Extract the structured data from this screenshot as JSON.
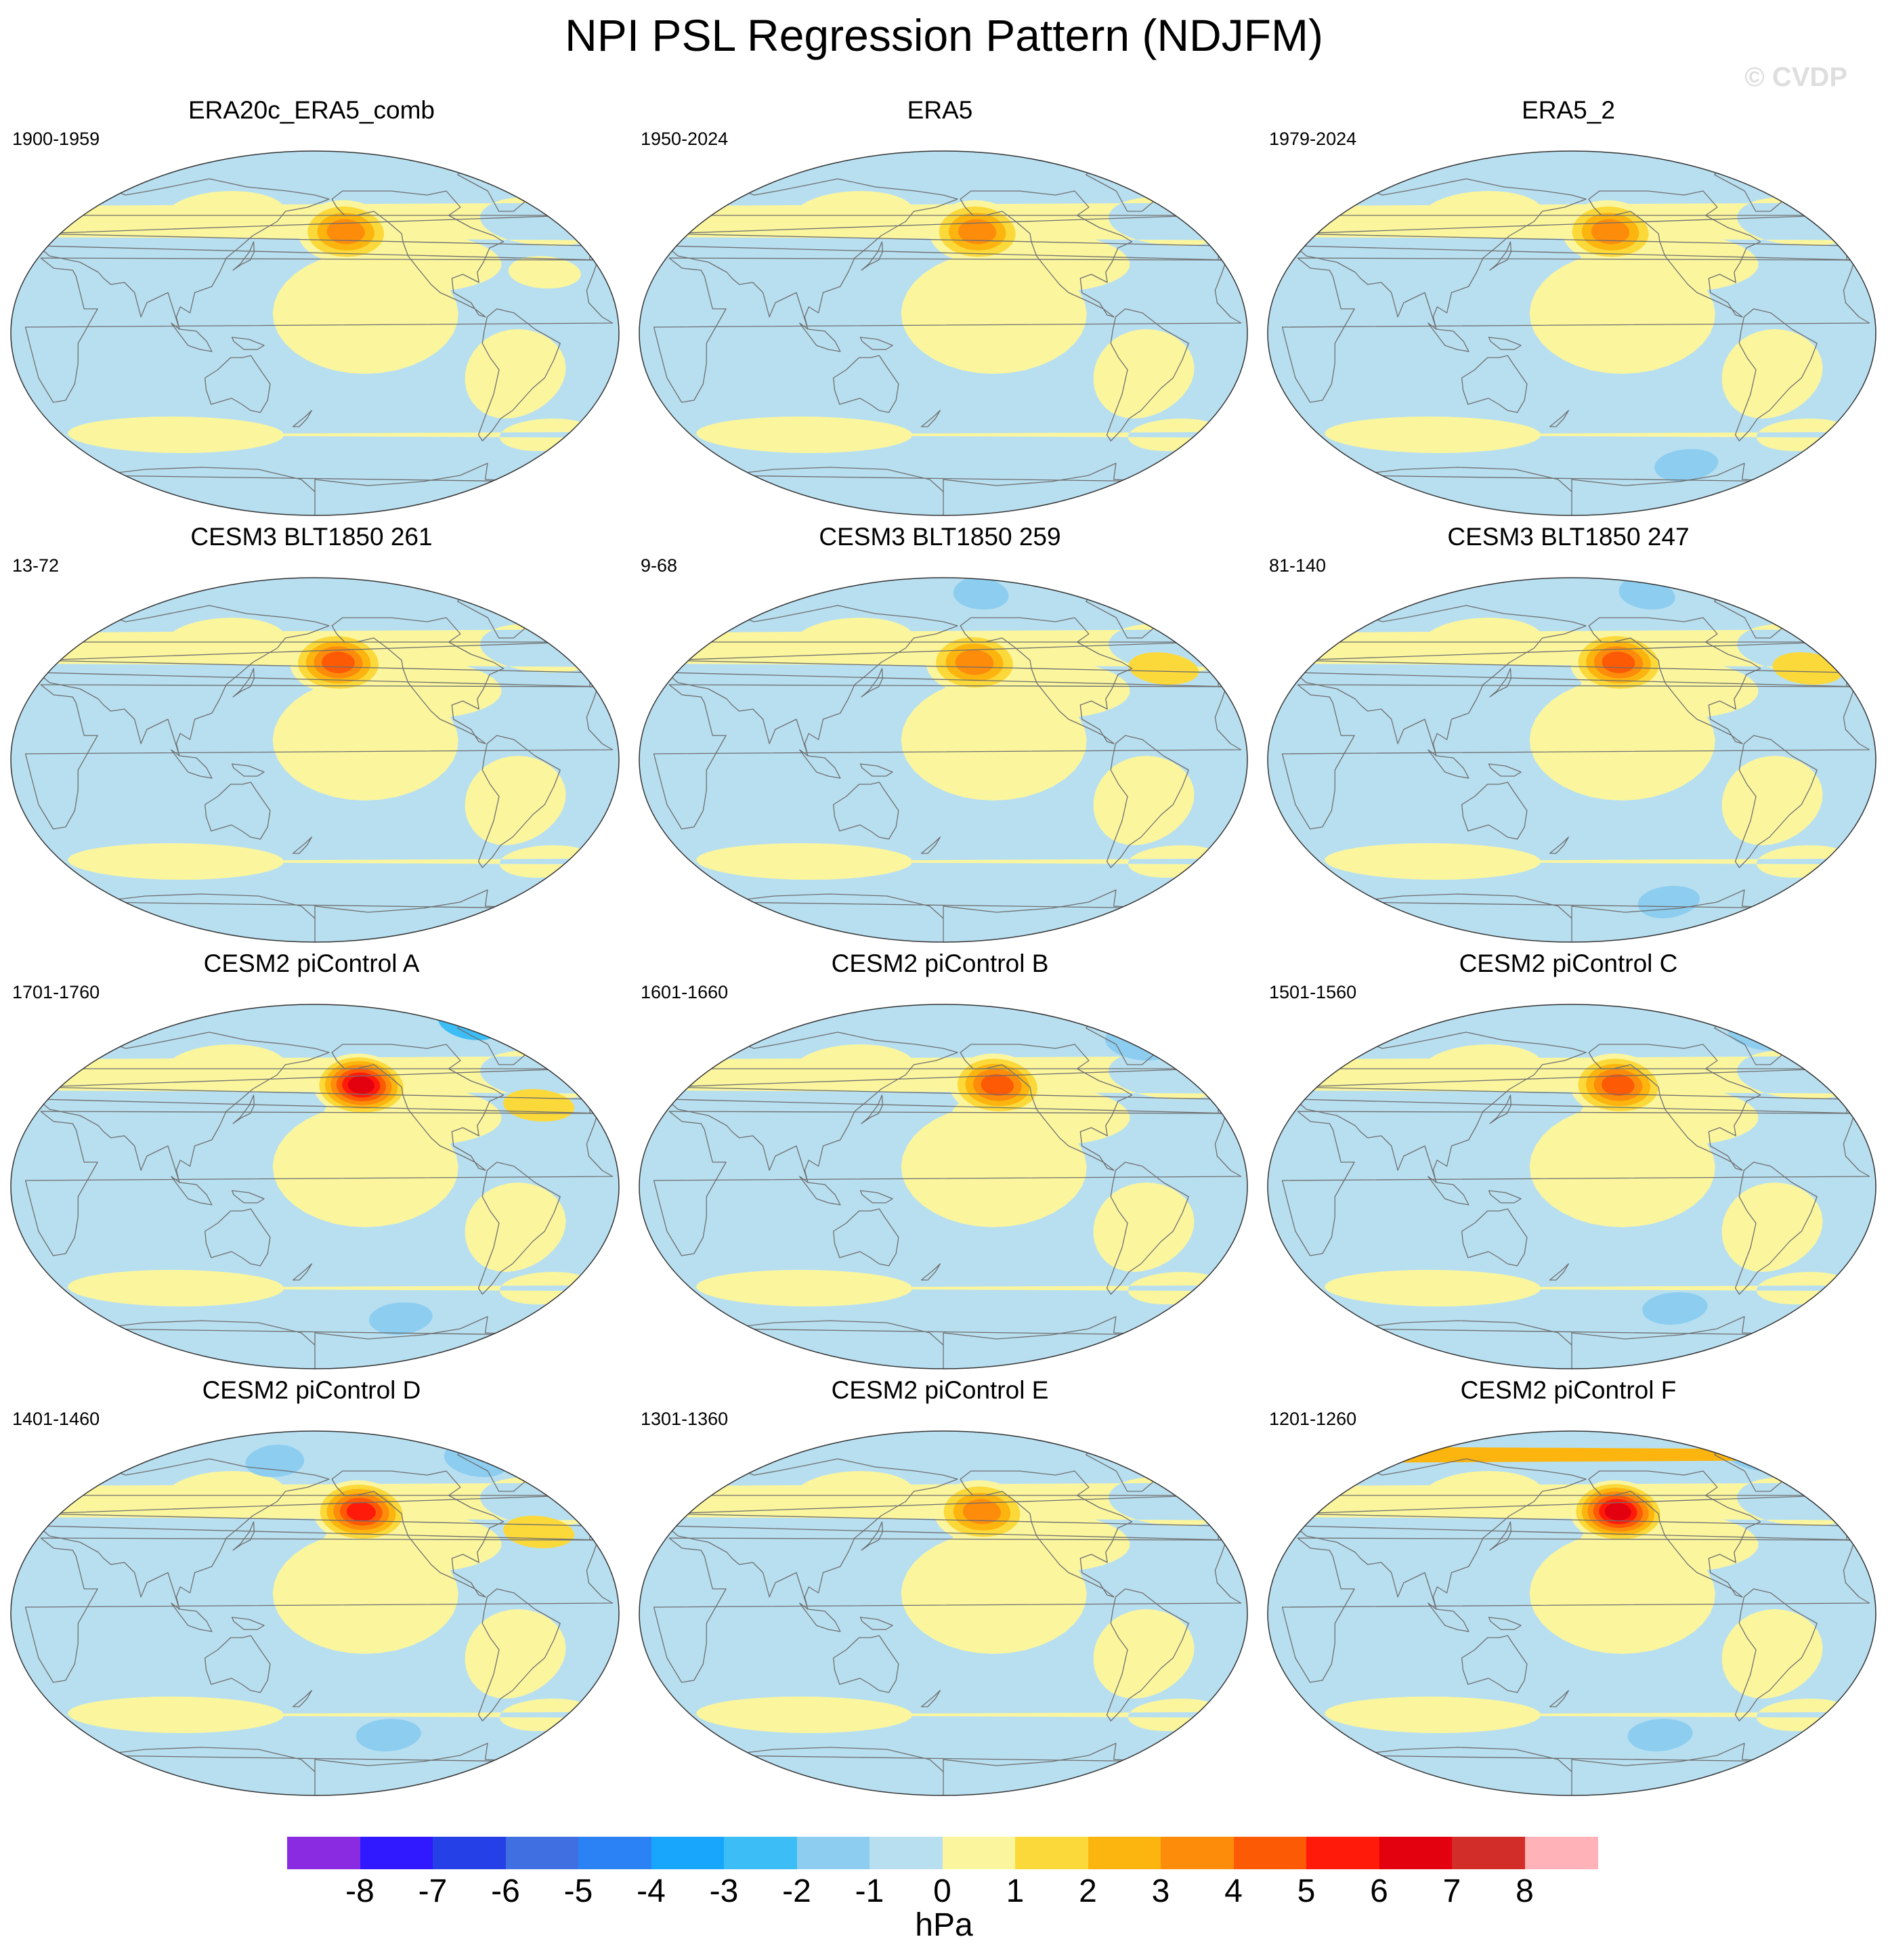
{
  "figure": {
    "title": "NPI PSL Regression Pattern (NDJFM)",
    "watermark": "© CVDP"
  },
  "colors": {
    "negative_weak": "#b8dff0",
    "positive_weak": "#fbf69e",
    "coast": "#6e6e6e"
  },
  "panels": [
    {
      "title": "ERA20c_ERA5_comb",
      "years": "1900-1959",
      "low_strength": 4,
      "low_lon": -160,
      "low_lat": 50,
      "features": [
        {
          "lon": 0,
          "lat": 82,
          "v": -1
        },
        {
          "lon": -40,
          "lat": 30,
          "v": 0.5
        }
      ]
    },
    {
      "title": "ERA5",
      "years": "1950-2024",
      "low_strength": 4,
      "low_lon": -158,
      "low_lat": 50,
      "features": [
        {
          "lon": 0,
          "lat": 82,
          "v": -1
        },
        {
          "lon": -100,
          "lat": -65,
          "v": -1
        }
      ]
    },
    {
      "title": "ERA5_2",
      "years": "1979-2024",
      "low_strength": 4,
      "low_lon": -155,
      "low_lat": 50,
      "features": [
        {
          "lon": -100,
          "lat": -65,
          "v": -2
        }
      ]
    },
    {
      "title": "CESM3 BLT1850 261",
      "years": "13-72",
      "low_strength": 5,
      "low_lon": -165,
      "low_lat": 48,
      "features": [
        {
          "lon": -150,
          "lat": 82,
          "v": -1
        },
        {
          "lon": -130,
          "lat": -65,
          "v": -1
        }
      ]
    },
    {
      "title": "CESM3 BLT1850 259",
      "years": "9-68",
      "low_strength": 4,
      "low_lon": -160,
      "low_lat": 48,
      "features": [
        {
          "lon": -150,
          "lat": 82,
          "v": -2
        },
        {
          "lon": -40,
          "lat": 45,
          "v": 1.5
        }
      ]
    },
    {
      "title": "CESM3 BLT1850 247",
      "years": "81-140",
      "low_strength": 5,
      "low_lon": -150,
      "low_lat": 48,
      "features": [
        {
          "lon": -120,
          "lat": 82,
          "v": -2
        },
        {
          "lon": -30,
          "lat": 45,
          "v": 1.5
        },
        {
          "lon": -110,
          "lat": -70,
          "v": -2
        }
      ]
    },
    {
      "title": "CESM2 piControl A",
      "years": "1701-1760",
      "low_strength": 7,
      "low_lon": -150,
      "low_lat": 50,
      "features": [
        {
          "lon": -60,
          "lat": 80,
          "v": -3
        },
        {
          "lon": -40,
          "lat": 40,
          "v": 1.5
        },
        {
          "lon": -120,
          "lat": -65,
          "v": -2
        }
      ]
    },
    {
      "title": "CESM2 piControl B",
      "years": "1601-1660",
      "low_strength": 5,
      "low_lon": -145,
      "low_lat": 50,
      "features": [
        {
          "lon": -40,
          "lat": 70,
          "v": -2
        },
        {
          "lon": -130,
          "lat": -70,
          "v": -1
        }
      ]
    },
    {
      "title": "CESM2 piControl C",
      "years": "1501-1560",
      "low_strength": 5,
      "low_lon": -150,
      "low_lat": 50,
      "features": [
        {
          "lon": -40,
          "lat": 75,
          "v": -2
        },
        {
          "lon": -110,
          "lat": -60,
          "v": -2
        }
      ]
    },
    {
      "title": "CESM2 piControl D",
      "years": "1401-1460",
      "low_strength": 6,
      "low_lon": -150,
      "low_lat": 50,
      "features": [
        {
          "lon": 150,
          "lat": 75,
          "v": -2
        },
        {
          "lon": -60,
          "lat": 75,
          "v": -2
        },
        {
          "lon": -40,
          "lat": 40,
          "v": 1.5
        },
        {
          "lon": -130,
          "lat": -60,
          "v": -2
        }
      ]
    },
    {
      "title": "CESM2 piControl E",
      "years": "1301-1360",
      "low_strength": 4,
      "low_lon": -155,
      "low_lat": 50,
      "features": [
        {
          "lon": -50,
          "lat": 75,
          "v": -1
        }
      ]
    },
    {
      "title": "CESM2 piControl F",
      "years": "1201-1260",
      "low_strength": 7,
      "low_lon": -150,
      "low_lat": 50,
      "features": [
        {
          "lon": -40,
          "lat": 78,
          "v": -2
        },
        {
          "lon": 20,
          "lat": 78,
          "v": 2
        },
        {
          "lon": -120,
          "lat": -60,
          "v": -2
        }
      ]
    }
  ],
  "colorbar": {
    "colors": [
      "#8a2be2",
      "#3019ff",
      "#2440e6",
      "#3f6fe0",
      "#2a82f5",
      "#18a5fc",
      "#3cbdf5",
      "#8ccdf0",
      "#b8dff0",
      "#fbf69e",
      "#fcd93a",
      "#fcb40f",
      "#fd8c0b",
      "#fd5a06",
      "#ff1a0a",
      "#e3000f",
      "#d32d2a",
      "#ffb3b9"
    ],
    "labels": [
      "-8",
      "-7",
      "-6",
      "-5",
      "-4",
      "-3",
      "-2",
      "-1",
      "0",
      "1",
      "2",
      "3",
      "4",
      "5",
      "6",
      "7",
      "8"
    ],
    "unit": "hPa"
  }
}
